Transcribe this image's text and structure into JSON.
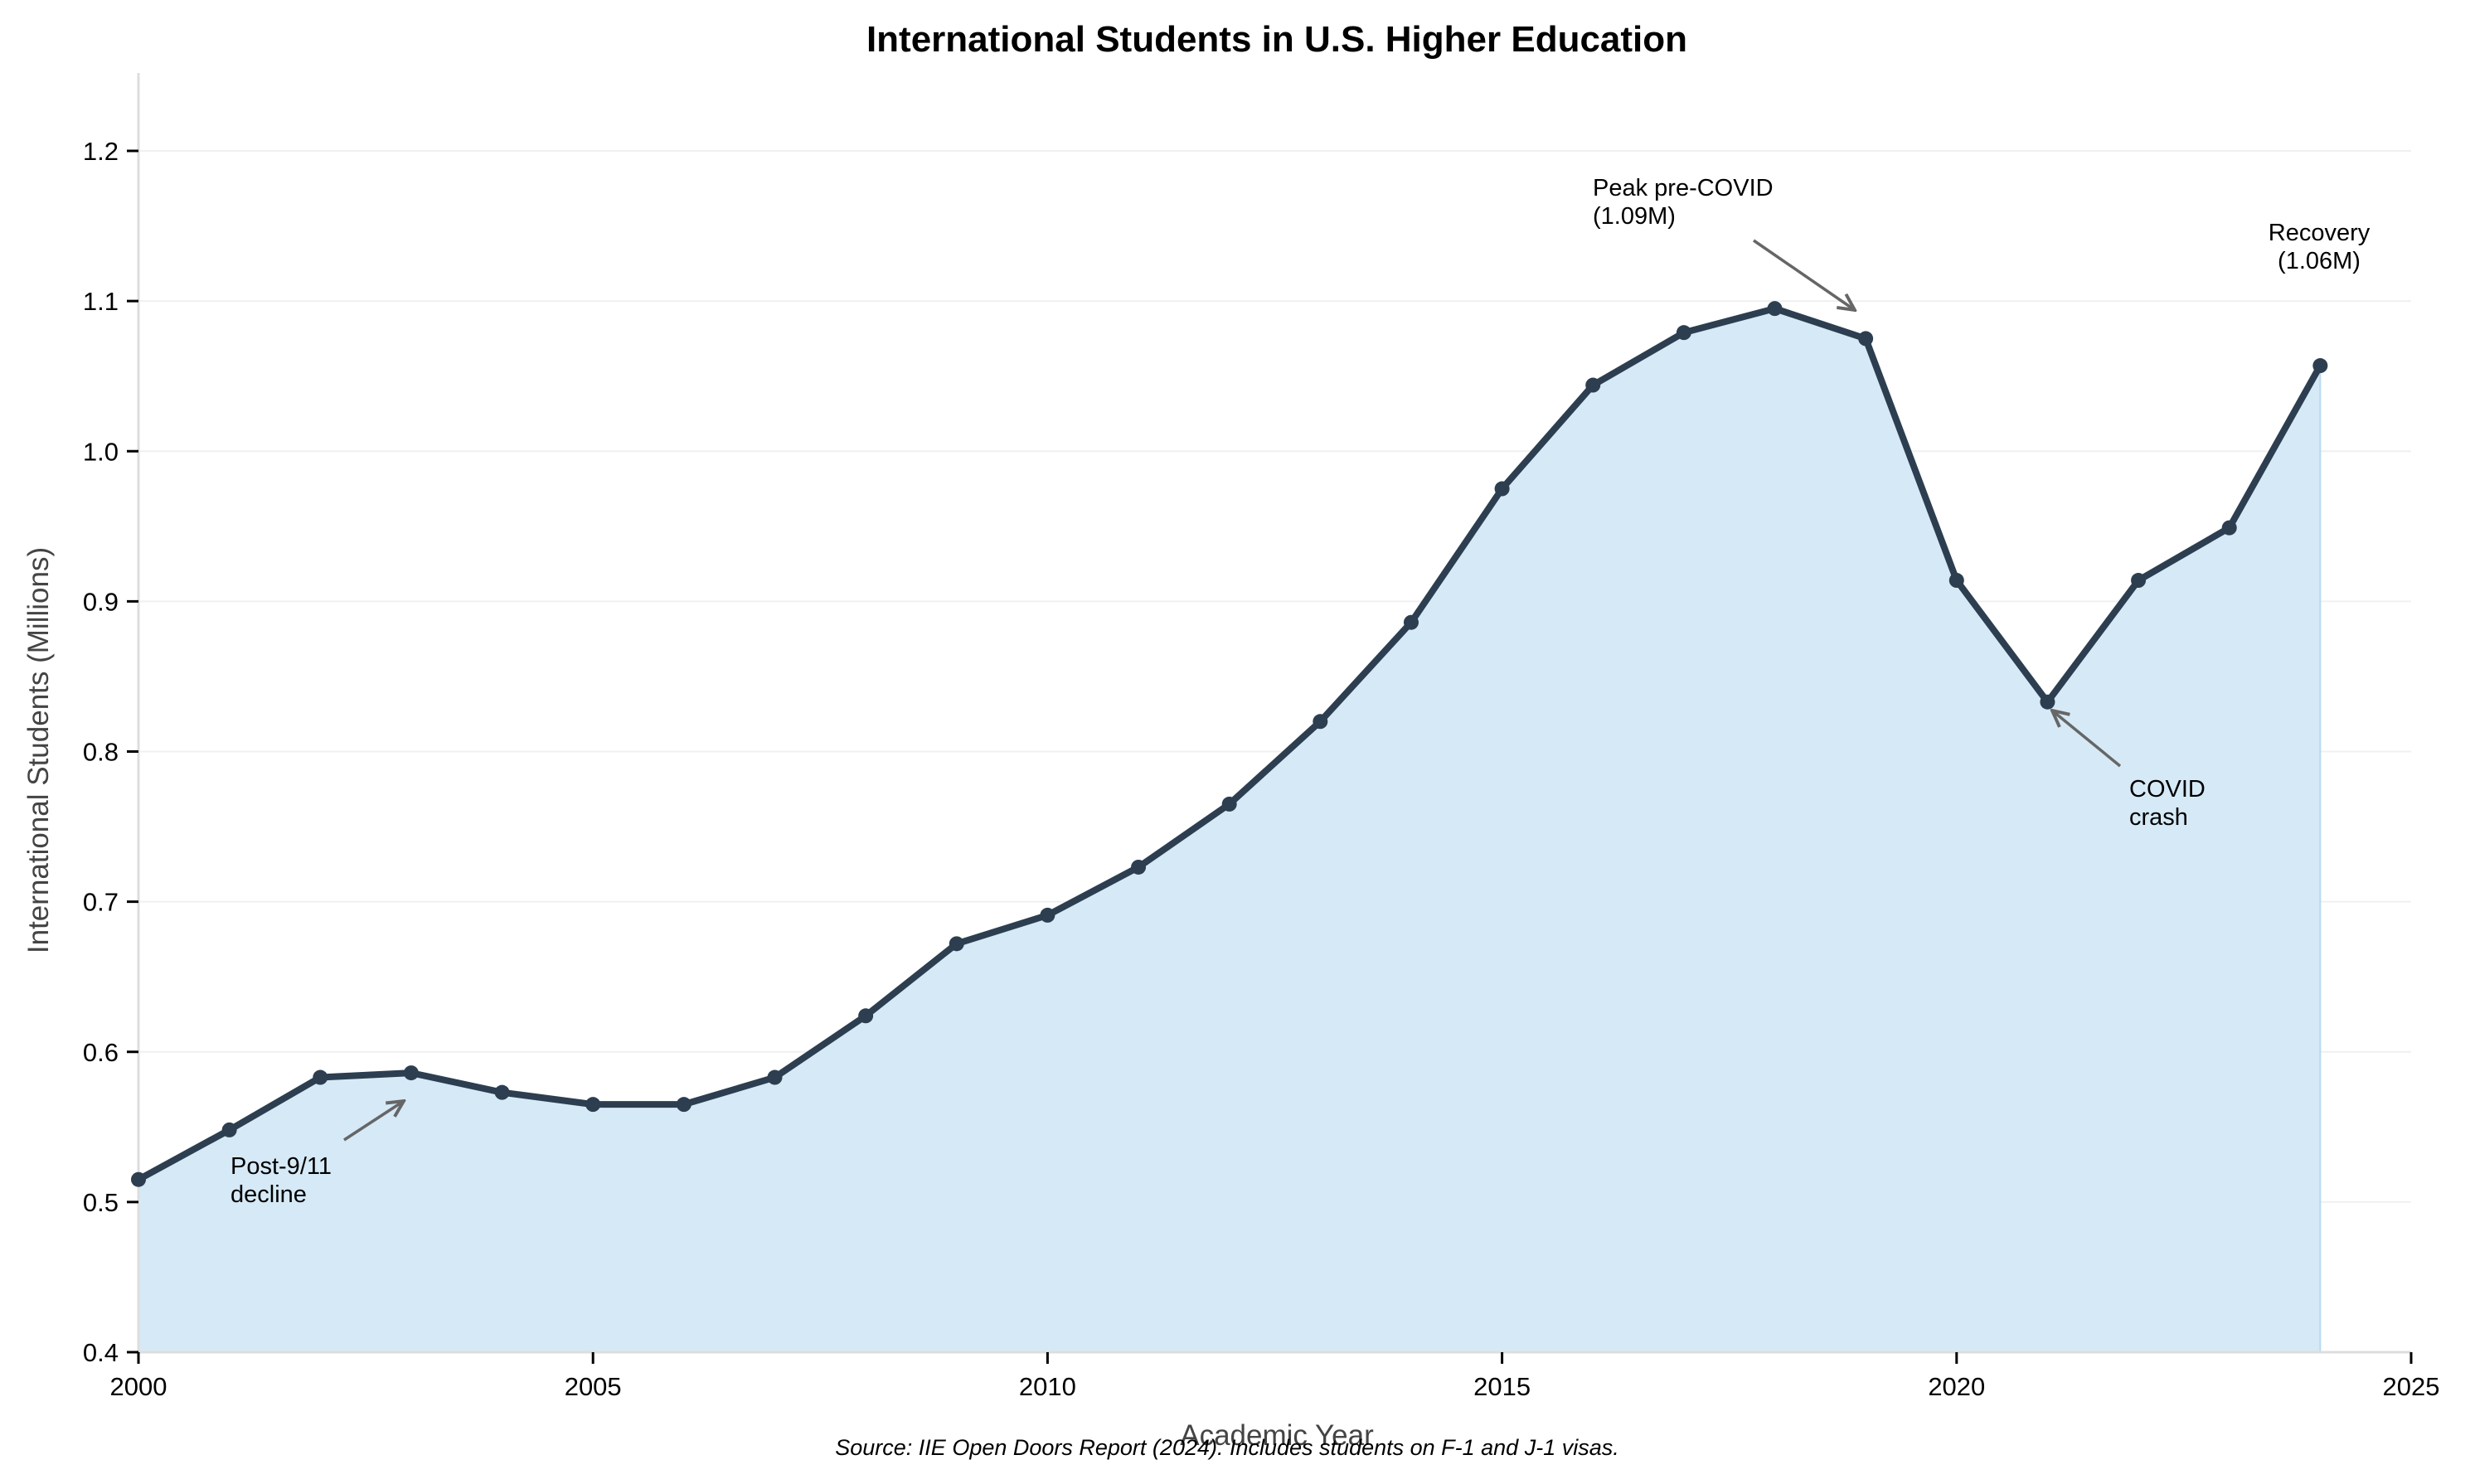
{
  "chart_data": {
    "type": "area",
    "title": "International Students in U.S. Higher Education",
    "xlabel": "Academic Year",
    "ylabel": "International Students (Millions)",
    "xlim": [
      2000,
      2025
    ],
    "ylim": [
      0.4,
      1.25
    ],
    "x_ticks": [
      2000,
      2005,
      2010,
      2015,
      2020,
      2025
    ],
    "y_ticks": [
      0.4,
      0.5,
      0.6,
      0.7,
      0.8,
      0.9,
      1.0,
      1.1,
      1.2
    ],
    "y_tick_labels": [
      "0.4",
      "0.5",
      "0.6",
      "0.7",
      "0.8",
      "0.9",
      "1.0",
      "1.1",
      "1.2"
    ],
    "grid": "horizontal",
    "legend": null,
    "x": [
      2000,
      2001,
      2002,
      2003,
      2004,
      2005,
      2006,
      2007,
      2008,
      2009,
      2010,
      2011,
      2012,
      2013,
      2014,
      2015,
      2016,
      2017,
      2018,
      2019,
      2020,
      2021,
      2022,
      2023,
      2024
    ],
    "series": [
      {
        "name": "International Students",
        "values": [
          0.515,
          0.548,
          0.583,
          0.586,
          0.573,
          0.565,
          0.565,
          0.583,
          0.624,
          0.672,
          0.691,
          0.723,
          0.765,
          0.82,
          0.886,
          0.975,
          1.044,
          1.079,
          1.095,
          1.075,
          0.914,
          0.833,
          0.914,
          0.949,
          1.057
        ]
      }
    ],
    "annotations": [
      {
        "text_lines": [
          "Post-9/11",
          "decline"
        ],
        "arrow_to_x": 2003,
        "arrow_to_y": 0.57
      },
      {
        "text_lines": [
          "Peak pre-COVID",
          "(1.09M)"
        ],
        "arrow_to_x": 2019,
        "arrow_to_y": 1.09
      },
      {
        "text_lines": [
          "COVID",
          "crash"
        ],
        "arrow_to_x": 2021,
        "arrow_to_y": 0.83
      },
      {
        "text_lines": [
          "Recovery",
          "(1.06M)"
        ],
        "arrow_to_x": null,
        "arrow_to_y": null
      }
    ],
    "source_note": "Source: IIE Open Doors Report (2024). Includes students on F-1 and J-1 visas."
  },
  "colors": {
    "line": "#2c3e50",
    "fill": "#d6e9f6",
    "fill_edge": "#b8d8f0",
    "grid": "#f0f0f0",
    "spine": "#dddddd",
    "arrow": "#666666"
  }
}
